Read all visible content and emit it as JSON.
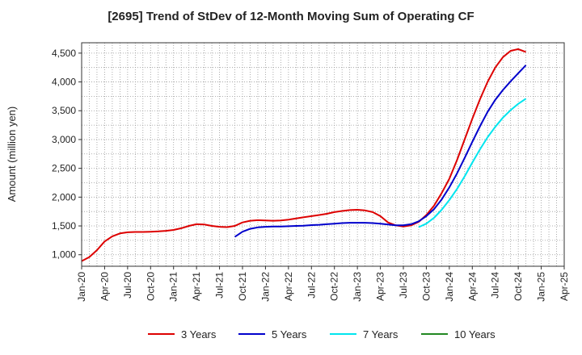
{
  "chart_data": {
    "type": "line",
    "title": "[2695]  Trend of StDev of 12-Month Moving Sum of Operating CF",
    "ylabel": "Amount (million yen)",
    "xlabel": "",
    "ylim": [
      800,
      4680
    ],
    "yticks": [
      1000,
      1500,
      2000,
      2500,
      3000,
      3500,
      4000,
      4500
    ],
    "ytick_labels": [
      "1,000",
      "1,500",
      "2,000",
      "2,500",
      "3,000",
      "3,500",
      "4,000",
      "4,500"
    ],
    "xlim": [
      "2020-01",
      "2025-04"
    ],
    "xtick_labels": [
      "Jan-20",
      "Apr-20",
      "Jul-20",
      "Oct-20",
      "Jan-21",
      "Apr-21",
      "Jul-21",
      "Oct-21",
      "Jan-22",
      "Apr-22",
      "Jul-22",
      "Oct-22",
      "Jan-23",
      "Apr-23",
      "Jul-23",
      "Oct-23",
      "Jan-24",
      "Apr-24",
      "Jul-24",
      "Oct-24",
      "Jan-25",
      "Apr-25"
    ],
    "grid": true,
    "legend_position": "bottom",
    "series": [
      {
        "name": "3 Years",
        "color": "#dd0000",
        "points": [
          [
            "2020-01",
            890
          ],
          [
            "2020-02",
            960
          ],
          [
            "2020-03",
            1080
          ],
          [
            "2020-04",
            1230
          ],
          [
            "2020-05",
            1320
          ],
          [
            "2020-06",
            1370
          ],
          [
            "2020-07",
            1390
          ],
          [
            "2020-08",
            1395
          ],
          [
            "2020-09",
            1395
          ],
          [
            "2020-10",
            1400
          ],
          [
            "2020-11",
            1405
          ],
          [
            "2020-12",
            1415
          ],
          [
            "2021-01",
            1430
          ],
          [
            "2021-02",
            1460
          ],
          [
            "2021-03",
            1500
          ],
          [
            "2021-04",
            1530
          ],
          [
            "2021-05",
            1525
          ],
          [
            "2021-06",
            1500
          ],
          [
            "2021-07",
            1485
          ],
          [
            "2021-08",
            1480
          ],
          [
            "2021-09",
            1500
          ],
          [
            "2021-10",
            1560
          ],
          [
            "2021-11",
            1590
          ],
          [
            "2021-12",
            1600
          ],
          [
            "2022-01",
            1595
          ],
          [
            "2022-02",
            1590
          ],
          [
            "2022-03",
            1595
          ],
          [
            "2022-04",
            1610
          ],
          [
            "2022-05",
            1630
          ],
          [
            "2022-06",
            1650
          ],
          [
            "2022-07",
            1670
          ],
          [
            "2022-08",
            1690
          ],
          [
            "2022-09",
            1710
          ],
          [
            "2022-10",
            1740
          ],
          [
            "2022-11",
            1760
          ],
          [
            "2022-12",
            1775
          ],
          [
            "2023-01",
            1780
          ],
          [
            "2023-02",
            1770
          ],
          [
            "2023-03",
            1740
          ],
          [
            "2023-04",
            1670
          ],
          [
            "2023-05",
            1560
          ],
          [
            "2023-06",
            1510
          ],
          [
            "2023-07",
            1490
          ],
          [
            "2023-08",
            1510
          ],
          [
            "2023-09",
            1570
          ],
          [
            "2023-10",
            1690
          ],
          [
            "2023-11",
            1850
          ],
          [
            "2023-12",
            2070
          ],
          [
            "2024-01",
            2320
          ],
          [
            "2024-02",
            2640
          ],
          [
            "2024-03",
            3000
          ],
          [
            "2024-04",
            3360
          ],
          [
            "2024-05",
            3700
          ],
          [
            "2024-06",
            4000
          ],
          [
            "2024-07",
            4250
          ],
          [
            "2024-08",
            4430
          ],
          [
            "2024-09",
            4540
          ],
          [
            "2024-10",
            4570
          ],
          [
            "2024-11",
            4520
          ]
        ]
      },
      {
        "name": "5 Years",
        "color": "#0000cc",
        "points": [
          [
            "2021-09",
            1310
          ],
          [
            "2021-10",
            1400
          ],
          [
            "2021-11",
            1450
          ],
          [
            "2021-12",
            1475
          ],
          [
            "2022-01",
            1485
          ],
          [
            "2022-02",
            1490
          ],
          [
            "2022-03",
            1490
          ],
          [
            "2022-04",
            1495
          ],
          [
            "2022-05",
            1500
          ],
          [
            "2022-06",
            1505
          ],
          [
            "2022-07",
            1515
          ],
          [
            "2022-08",
            1520
          ],
          [
            "2022-09",
            1530
          ],
          [
            "2022-10",
            1540
          ],
          [
            "2022-11",
            1550
          ],
          [
            "2022-12",
            1555
          ],
          [
            "2023-01",
            1555
          ],
          [
            "2023-02",
            1555
          ],
          [
            "2023-03",
            1550
          ],
          [
            "2023-04",
            1540
          ],
          [
            "2023-05",
            1525
          ],
          [
            "2023-06",
            1510
          ],
          [
            "2023-07",
            1510
          ],
          [
            "2023-08",
            1530
          ],
          [
            "2023-09",
            1580
          ],
          [
            "2023-10",
            1670
          ],
          [
            "2023-11",
            1790
          ],
          [
            "2023-12",
            1960
          ],
          [
            "2024-01",
            2170
          ],
          [
            "2024-02",
            2410
          ],
          [
            "2024-03",
            2680
          ],
          [
            "2024-04",
            2960
          ],
          [
            "2024-05",
            3230
          ],
          [
            "2024-06",
            3480
          ],
          [
            "2024-07",
            3690
          ],
          [
            "2024-08",
            3860
          ],
          [
            "2024-09",
            4010
          ],
          [
            "2024-10",
            4150
          ],
          [
            "2024-11",
            4290
          ]
        ]
      },
      {
        "name": "7 Years",
        "color": "#00e5ee",
        "points": [
          [
            "2023-09",
            1480
          ],
          [
            "2023-10",
            1540
          ],
          [
            "2023-11",
            1640
          ],
          [
            "2023-12",
            1780
          ],
          [
            "2024-01",
            1950
          ],
          [
            "2024-02",
            2140
          ],
          [
            "2024-03",
            2360
          ],
          [
            "2024-04",
            2600
          ],
          [
            "2024-05",
            2830
          ],
          [
            "2024-06",
            3040
          ],
          [
            "2024-07",
            3220
          ],
          [
            "2024-08",
            3380
          ],
          [
            "2024-09",
            3510
          ],
          [
            "2024-10",
            3620
          ],
          [
            "2024-11",
            3710
          ]
        ]
      },
      {
        "name": "10 Years",
        "color": "#228822",
        "points": []
      }
    ]
  }
}
